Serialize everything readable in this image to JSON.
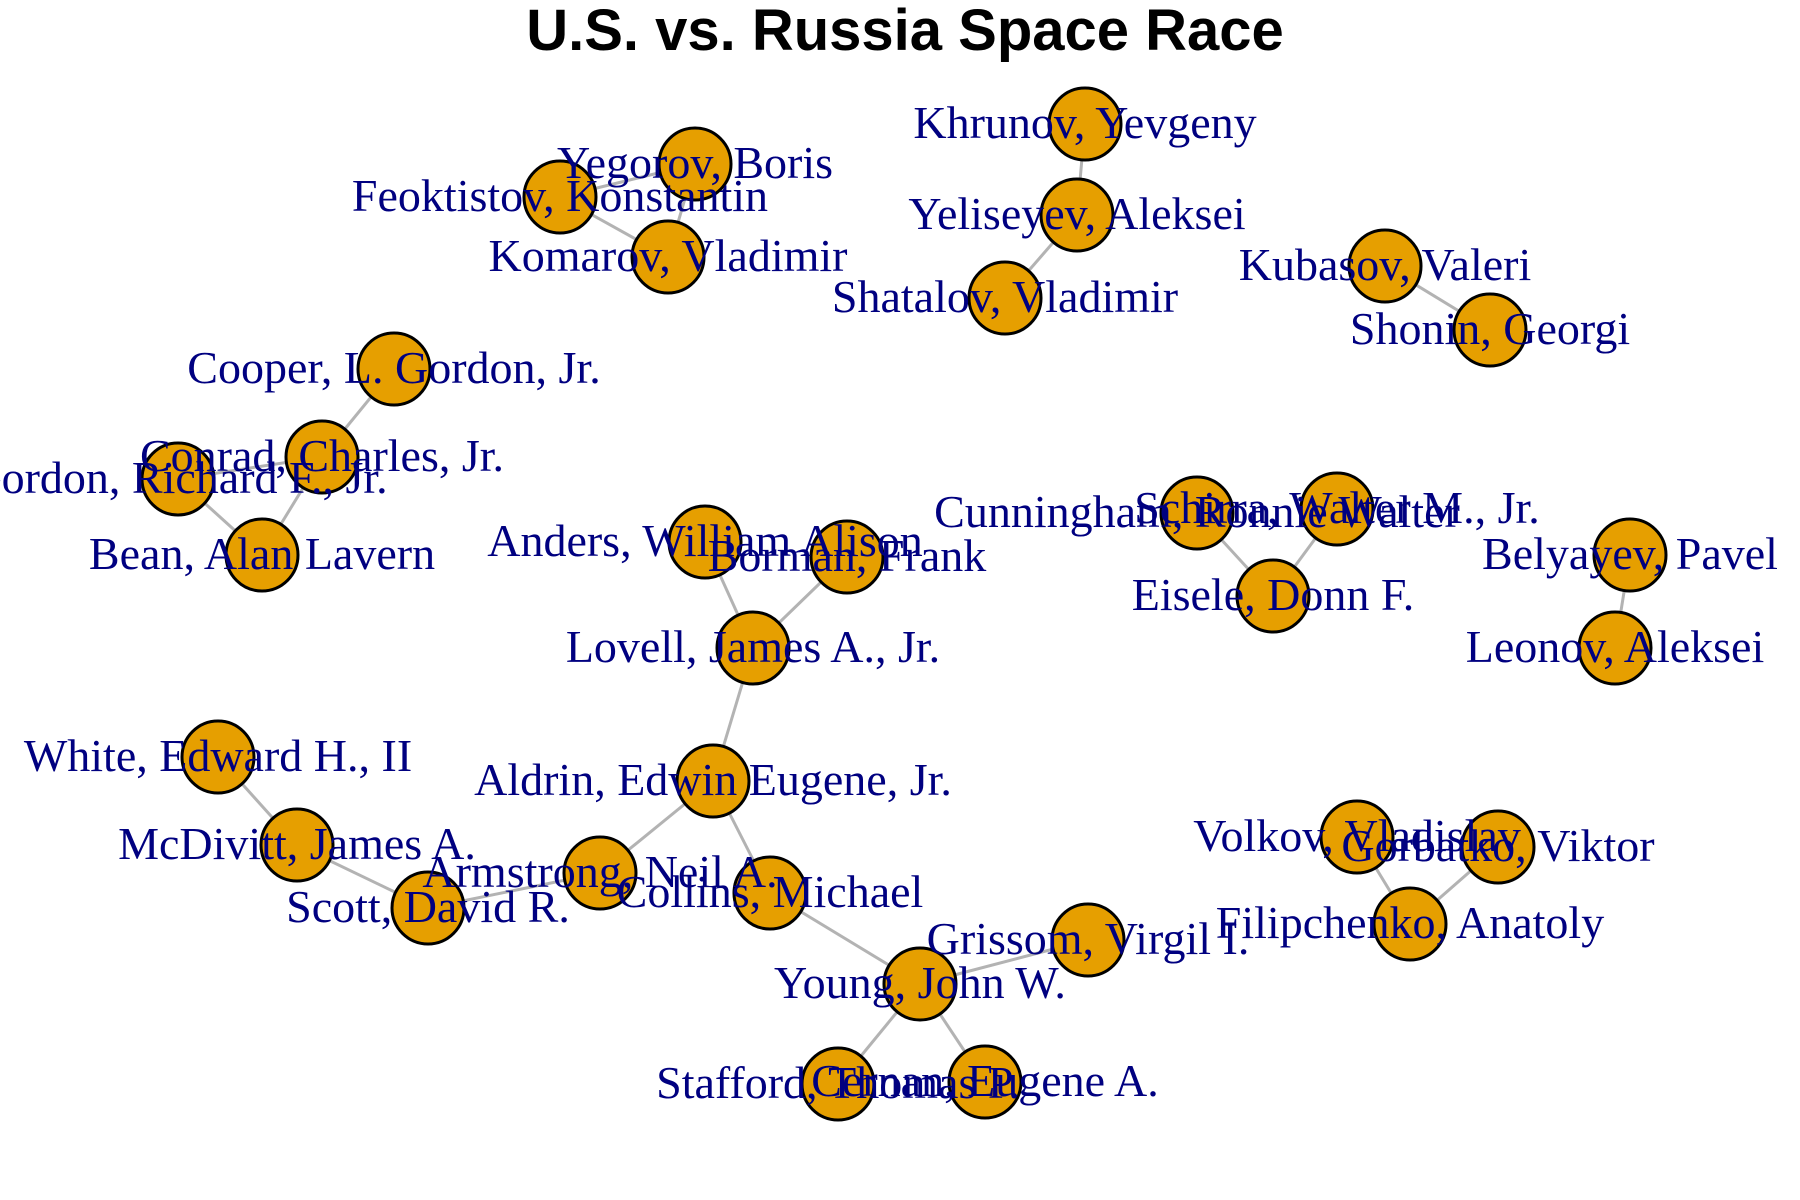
{
  "title": "U.S. vs. Russia Space Race",
  "colors": {
    "background": "#ffffff",
    "node_fill": "#e69f00",
    "node_stroke": "#000000",
    "edge": "#b3b3b3",
    "label": "#000080",
    "title": "#000000"
  },
  "nodes": [
    {
      "id": "yegorov",
      "label": "Yegorov, Boris"
    },
    {
      "id": "feoktistov",
      "label": "Feoktistov, Konstantin"
    },
    {
      "id": "komarov",
      "label": "Komarov, Vladimir"
    },
    {
      "id": "khrunov",
      "label": "Khrunov, Yevgeny"
    },
    {
      "id": "yeliseyev",
      "label": "Yeliseyev, Aleksei"
    },
    {
      "id": "shatalov",
      "label": "Shatalov, Vladimir"
    },
    {
      "id": "kubasov",
      "label": "Kubasov, Valeri"
    },
    {
      "id": "shonin",
      "label": "Shonin, Georgi"
    },
    {
      "id": "cooper",
      "label": "Cooper, L. Gordon, Jr."
    },
    {
      "id": "conrad",
      "label": "Conrad, Charles, Jr."
    },
    {
      "id": "gordon",
      "label": "Gordon, Richard F., Jr."
    },
    {
      "id": "bean",
      "label": "Bean, Alan Lavern"
    },
    {
      "id": "anders",
      "label": "Anders, William Alison"
    },
    {
      "id": "borman",
      "label": "Borman, Frank"
    },
    {
      "id": "lovell",
      "label": "Lovell, James A., Jr."
    },
    {
      "id": "cunningham",
      "label": "Cunningham, Ronnie Walter"
    },
    {
      "id": "schirra",
      "label": "Schirra, Walter M., Jr."
    },
    {
      "id": "eisele",
      "label": "Eisele, Donn F."
    },
    {
      "id": "belyayev",
      "label": "Belyayev, Pavel"
    },
    {
      "id": "leonov",
      "label": "Leonov, Aleksei"
    },
    {
      "id": "white",
      "label": "White, Edward H., II"
    },
    {
      "id": "mcdivitt",
      "label": "McDivitt, James A."
    },
    {
      "id": "scott",
      "label": "Scott, David R."
    },
    {
      "id": "aldrin",
      "label": "Aldrin, Edwin Eugene, Jr."
    },
    {
      "id": "armstrong",
      "label": "Armstrong, Neil A."
    },
    {
      "id": "collins",
      "label": "Collins, Michael"
    },
    {
      "id": "young",
      "label": "Young, John W."
    },
    {
      "id": "grissom",
      "label": "Grissom, Virgil I."
    },
    {
      "id": "stafford",
      "label": "Stafford, Thomas P."
    },
    {
      "id": "cernan",
      "label": "Cernan, Eugene A."
    },
    {
      "id": "volkov",
      "label": "Volkov, Vladislav"
    },
    {
      "id": "gorbatko",
      "label": "Gorbatko, Viktor"
    },
    {
      "id": "filipchenko",
      "label": "Filipchenko, Anatoly"
    }
  ],
  "edges": [
    [
      "yegorov",
      "feoktistov"
    ],
    [
      "yegorov",
      "komarov"
    ],
    [
      "feoktistov",
      "komarov"
    ],
    [
      "khrunov",
      "yeliseyev"
    ],
    [
      "yeliseyev",
      "shatalov"
    ],
    [
      "kubasov",
      "shonin"
    ],
    [
      "cooper",
      "conrad"
    ],
    [
      "conrad",
      "gordon"
    ],
    [
      "conrad",
      "bean"
    ],
    [
      "gordon",
      "bean"
    ],
    [
      "anders",
      "lovell"
    ],
    [
      "borman",
      "lovell"
    ],
    [
      "lovell",
      "aldrin"
    ],
    [
      "cunningham",
      "eisele"
    ],
    [
      "schirra",
      "eisele"
    ],
    [
      "belyayev",
      "leonov"
    ],
    [
      "white",
      "mcdivitt"
    ],
    [
      "mcdivitt",
      "scott"
    ],
    [
      "scott",
      "armstrong"
    ],
    [
      "armstrong",
      "aldrin"
    ],
    [
      "aldrin",
      "collins"
    ],
    [
      "collins",
      "young"
    ],
    [
      "young",
      "grissom"
    ],
    [
      "young",
      "stafford"
    ],
    [
      "young",
      "cernan"
    ],
    [
      "volkov",
      "filipchenko"
    ],
    [
      "gorbatko",
      "filipchenko"
    ]
  ]
}
